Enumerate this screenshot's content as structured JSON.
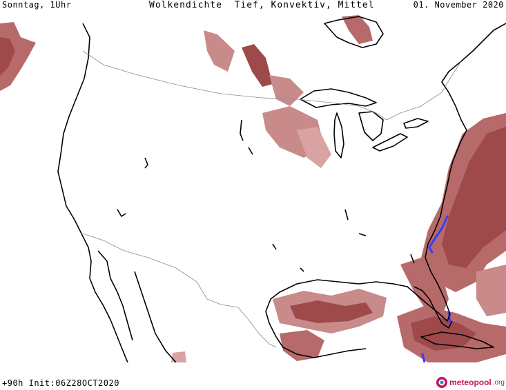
{
  "header": {
    "left": "Sonntag, 1Uhr",
    "center": "Wolkendichte  Tief, Konvektiv, Mittel",
    "right": "01. November 2020"
  },
  "footer": {
    "run_info": "+90h Init:06Z28OCT2020",
    "logo_text": "meteopool",
    "logo_domain": ".org"
  },
  "colors": {
    "cloud_dark": "#9e4a4a",
    "cloud_mid": "#b76a6a",
    "cloud_light": "#d9a3a3",
    "coast": "#000000",
    "border": "#8a8a8a",
    "convective": "#3a3aff",
    "logo_pink": "#c2185b"
  }
}
